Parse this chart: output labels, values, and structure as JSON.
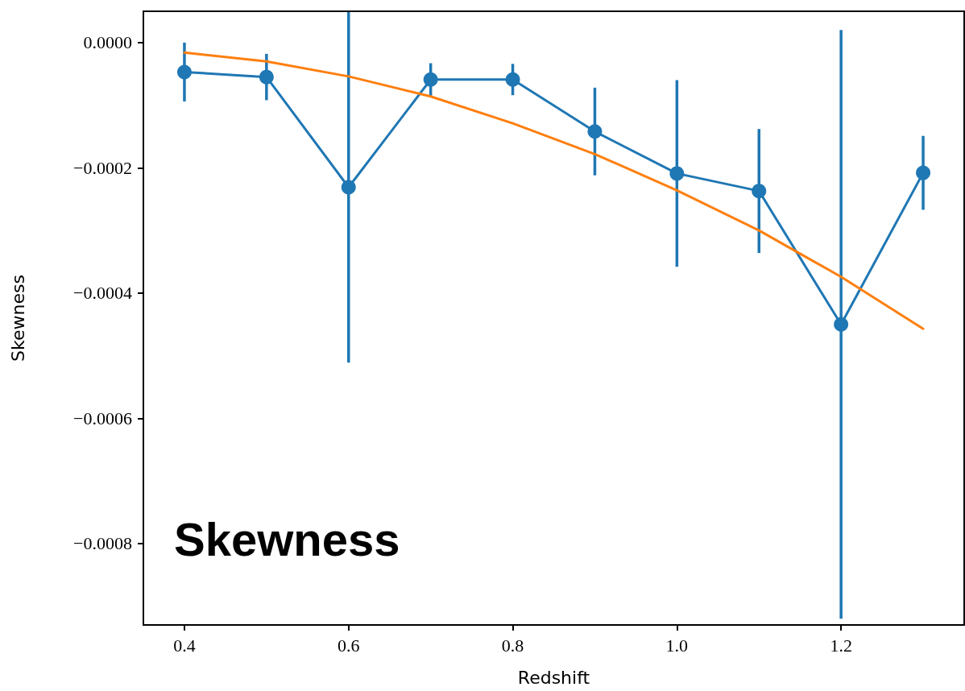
{
  "chart_data": {
    "type": "line",
    "xlabel": "Redshift",
    "ylabel": "Skewness",
    "annotations": [
      "Skewness"
    ],
    "xlim": [
      0.35,
      1.35
    ],
    "ylim": [
      -0.00093,
      5e-05
    ],
    "xticks": [
      0.4,
      0.6,
      0.8,
      {
        "value": 1,
        "label": "1.0"
      },
      1.2
    ],
    "yticks": [
      {
        "value": 0,
        "label": "0.0000"
      },
      {
        "value": -0.0002,
        "label": "−0.0002"
      },
      {
        "value": -0.0004,
        "label": "−0.0004"
      },
      {
        "value": -0.0006,
        "label": "−0.0006"
      },
      {
        "value": -0.0008,
        "label": "−0.0008"
      }
    ],
    "grid": false,
    "series": [
      {
        "color": "#1f77b4",
        "marker": "circle",
        "x": [
          0.4,
          0.5,
          0.6,
          0.7,
          0.8,
          0.9,
          1.0,
          1.1,
          1.2,
          1.3
        ],
        "values": [
          -4.7e-05,
          -5.5e-05,
          -0.000231,
          -5.9e-05,
          -5.9e-05,
          -0.000142,
          -0.000209,
          -0.000237,
          -0.00045,
          -0.000208
        ],
        "errors": [
          4.7e-05,
          3.7e-05,
          0.00028,
          2.6e-05,
          2.5e-05,
          7e-05,
          0.000149,
          9.9e-05,
          0.00047,
          5.9e-05
        ]
      },
      {
        "color": "#ff7f0e",
        "marker": "none",
        "x": [
          0.4,
          0.5,
          0.6,
          0.7,
          0.8,
          0.9,
          1.0,
          1.1,
          1.2,
          1.3
        ],
        "values": [
          -1.6e-05,
          -3e-05,
          -5.4e-05,
          -8.6e-05,
          -0.000129,
          -0.000178,
          -0.000236,
          -0.0003,
          -0.000374,
          -0.000457
        ]
      }
    ]
  }
}
